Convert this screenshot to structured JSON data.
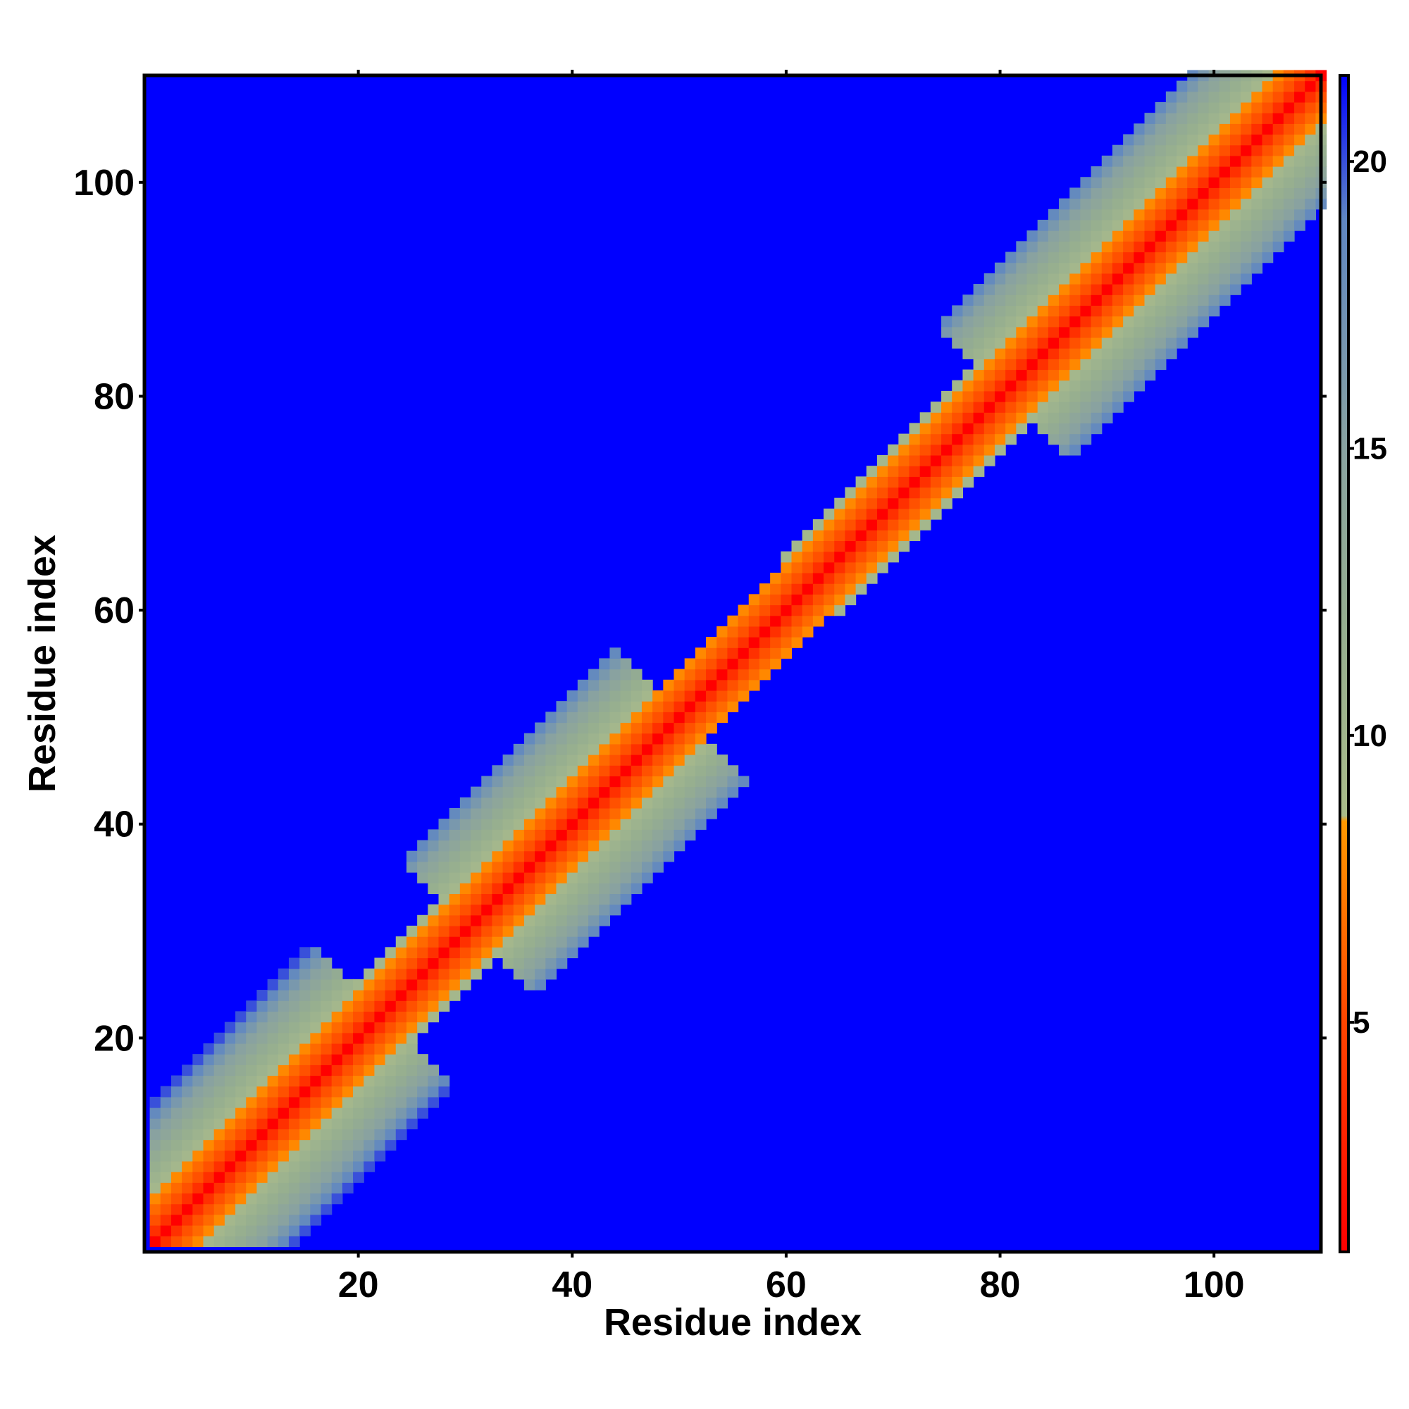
{
  "chart_data": {
    "type": "heatmap",
    "title": "",
    "xlabel": "Residue index",
    "ylabel": "Residue index",
    "n_residues": 110,
    "xlim": [
      1,
      110
    ],
    "ylim": [
      1,
      110
    ],
    "x_ticks": [
      20,
      40,
      60,
      80,
      100
    ],
    "y_ticks": [
      20,
      40,
      60,
      80,
      100
    ],
    "x_tick_labels": [
      "20",
      "40",
      "60",
      "80",
      "100"
    ],
    "y_tick_labels": [
      "20",
      "40",
      "60",
      "80",
      "100"
    ],
    "colorbar": {
      "range": [
        1,
        21.5
      ],
      "ticks": [
        5,
        10,
        15,
        20
      ],
      "tick_labels": [
        "5",
        "10",
        "15",
        "20"
      ],
      "stops": [
        {
          "value": 1,
          "color": "#ff0000"
        },
        {
          "value": 5,
          "color": "#ff4500"
        },
        {
          "value": 8.5,
          "color": "#ff9900"
        },
        {
          "value": 8.6,
          "color": "#a9bb8a"
        },
        {
          "value": 12,
          "color": "#95ad90"
        },
        {
          "value": 15,
          "color": "#89a2a0"
        },
        {
          "value": 19,
          "color": "#5f86c2"
        },
        {
          "value": 21.5,
          "color": "#0000ff"
        }
      ]
    },
    "background_value": 21.5,
    "background_color": "#0000ff",
    "band_profile": {
      "description": "distance vs sequence separation |i-j|; cells beyond band are background",
      "separation": [
        0,
        1,
        2,
        3,
        4,
        5,
        6,
        7,
        8,
        9,
        10,
        11,
        12,
        13
      ],
      "distance": [
        1,
        3.8,
        5.5,
        6.5,
        7.8,
        9.5,
        10.6,
        11.6,
        12.6,
        13.8,
        15,
        16.5,
        18.5,
        20
      ]
    },
    "band_half_width_by_region": [
      {
        "from": 1,
        "to": 22,
        "half_width": 13
      },
      {
        "from": 23,
        "to": 30,
        "half_width": 5
      },
      {
        "from": 31,
        "to": 50,
        "half_width": 12
      },
      {
        "from": 51,
        "to": 62,
        "half_width": 4
      },
      {
        "from": 63,
        "to": 80,
        "half_width": 5
      },
      {
        "from": 81,
        "to": 110,
        "half_width": 12
      }
    ]
  }
}
